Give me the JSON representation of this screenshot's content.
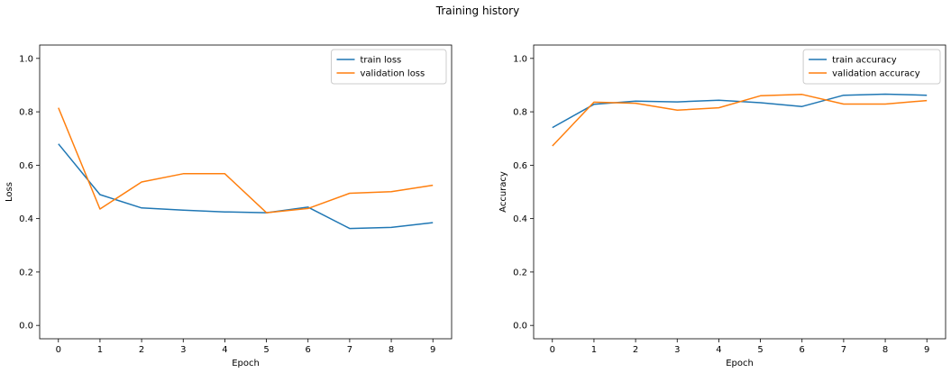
{
  "suptitle": "Training history",
  "chart_data": [
    {
      "type": "line",
      "xlabel": "Epoch",
      "ylabel": "Loss",
      "x": [
        0,
        1,
        2,
        3,
        4,
        5,
        6,
        7,
        8,
        9
      ],
      "xlim": [
        -0.45,
        9.45
      ],
      "ylim": [
        -0.05,
        1.05
      ],
      "yticks": [
        "0.0",
        "0.2",
        "0.4",
        "0.6",
        "0.8",
        "1.0"
      ],
      "legend_position": "top-right",
      "grid": false,
      "series": [
        {
          "name": "train loss",
          "color": "#1f77b4",
          "values": [
            0.68,
            0.49,
            0.44,
            0.432,
            0.425,
            0.422,
            0.443,
            0.363,
            0.367,
            0.385
          ]
        },
        {
          "name": "validation loss",
          "color": "#ff7f0e",
          "values": [
            0.815,
            0.436,
            0.537,
            0.568,
            0.568,
            0.422,
            0.438,
            0.495,
            0.501,
            0.525
          ]
        }
      ]
    },
    {
      "type": "line",
      "xlabel": "Epoch",
      "ylabel": "Accuracy",
      "x": [
        0,
        1,
        2,
        3,
        4,
        5,
        6,
        7,
        8,
        9
      ],
      "xlim": [
        -0.45,
        9.45
      ],
      "ylim": [
        -0.05,
        1.05
      ],
      "yticks": [
        "0.0",
        "0.2",
        "0.4",
        "0.6",
        "0.8",
        "1.0"
      ],
      "legend_position": "top-right",
      "grid": false,
      "series": [
        {
          "name": "train accuracy",
          "color": "#1f77b4",
          "values": [
            0.741,
            0.828,
            0.84,
            0.837,
            0.843,
            0.834,
            0.82,
            0.862,
            0.866,
            0.862
          ]
        },
        {
          "name": "validation accuracy",
          "color": "#ff7f0e",
          "values": [
            0.672,
            0.836,
            0.832,
            0.806,
            0.815,
            0.86,
            0.865,
            0.829,
            0.829,
            0.842
          ]
        }
      ]
    }
  ]
}
